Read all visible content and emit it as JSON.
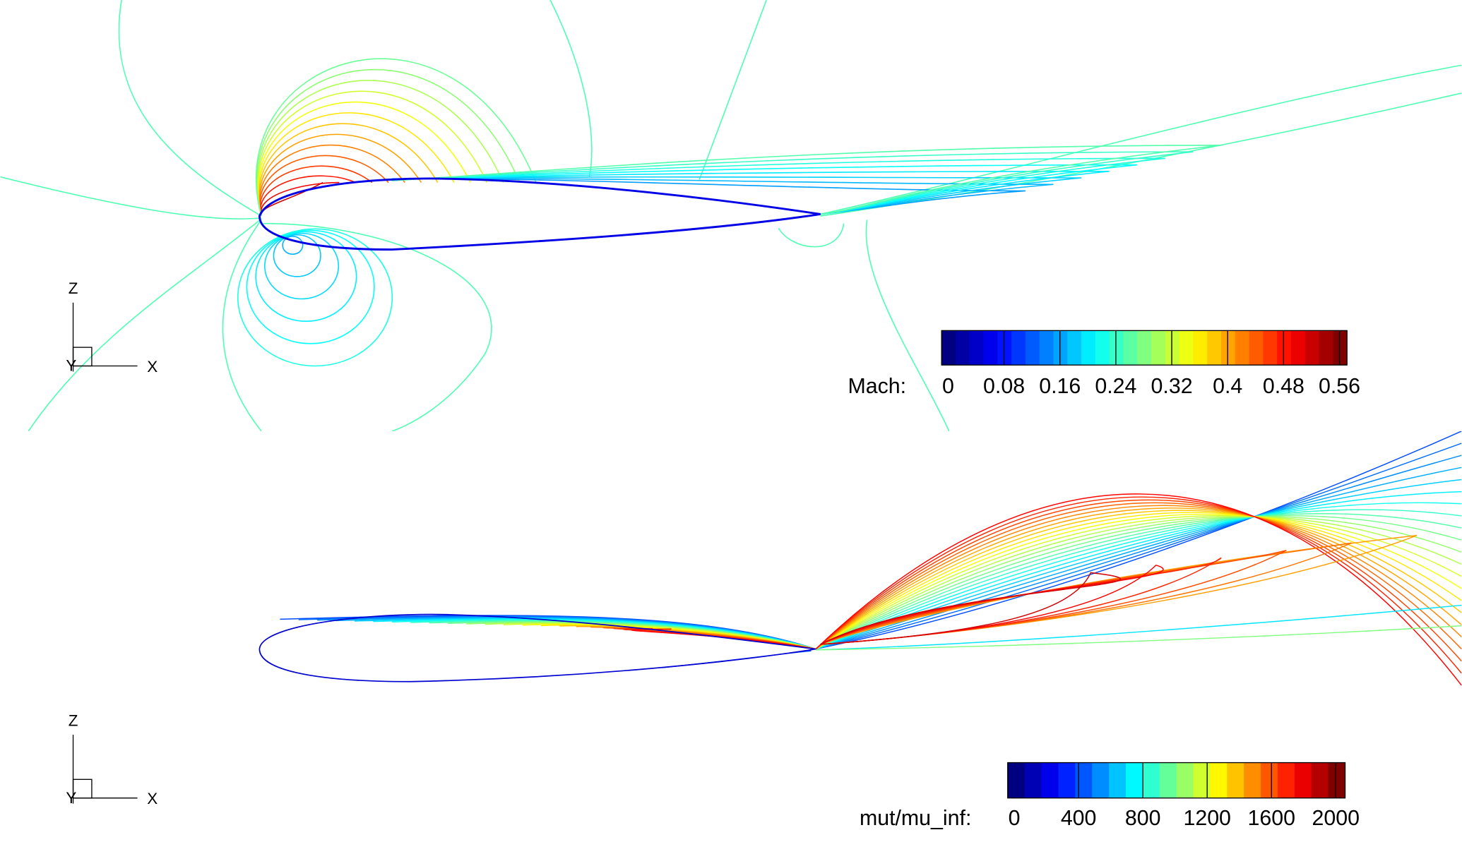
{
  "panels": [
    {
      "colorbar": {
        "label": "Mach:",
        "ticks": [
          0,
          0.08,
          0.16,
          0.24,
          0.32,
          0.4,
          0.48,
          0.56
        ]
      },
      "axes": {
        "z": "Z",
        "x": "X",
        "y": "Y"
      }
    },
    {
      "colorbar": {
        "label": "mut/mu_inf:",
        "ticks": [
          0,
          400,
          800,
          1200,
          1600,
          2000
        ]
      },
      "axes": {
        "z": "Z",
        "x": "X",
        "y": "Y"
      }
    }
  ]
}
